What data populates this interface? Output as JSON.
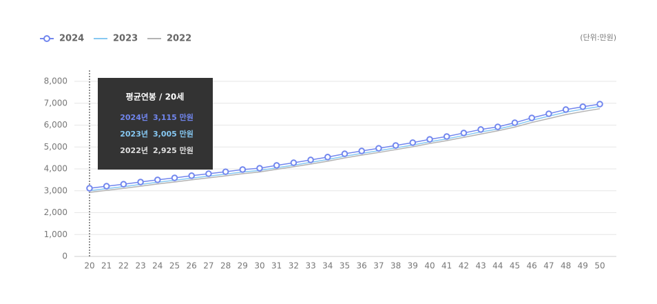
{
  "chart_data": {
    "type": "line",
    "unit_note": "(단위:만원)",
    "x": [
      20,
      21,
      22,
      23,
      24,
      25,
      26,
      27,
      28,
      29,
      30,
      31,
      32,
      33,
      34,
      35,
      36,
      37,
      38,
      39,
      40,
      41,
      42,
      43,
      44,
      45,
      46,
      47,
      48,
      49,
      50
    ],
    "xlim": [
      20,
      50
    ],
    "ylim": [
      0,
      8000
    ],
    "yticks": [
      0,
      {
        "value": 1000,
        "label": "1,000"
      },
      {
        "value": 2000,
        "label": "2,000"
      },
      {
        "value": 3000,
        "label": "3,000"
      },
      {
        "value": 4000,
        "label": "4,000"
      },
      {
        "value": 5000,
        "label": "5,000"
      },
      {
        "value": 6000,
        "label": "6,000"
      },
      {
        "value": 7000,
        "label": "7,000"
      },
      {
        "value": 8000,
        "label": "8,000"
      }
    ],
    "grid": true,
    "series": [
      {
        "name": "2024",
        "color": "#7186ee",
        "markers": true,
        "values": [
          3115,
          3210,
          3300,
          3400,
          3500,
          3590,
          3690,
          3780,
          3870,
          3970,
          4030,
          4160,
          4280,
          4410,
          4540,
          4690,
          4820,
          4940,
          5070,
          5200,
          5350,
          5480,
          5640,
          5800,
          5920,
          6110,
          6330,
          6520,
          6710,
          6840,
          6960
        ]
      },
      {
        "name": "2023",
        "color": "#86c8f2",
        "markers": false,
        "values": [
          3005,
          3100,
          3190,
          3290,
          3390,
          3480,
          3580,
          3670,
          3760,
          3860,
          3930,
          4050,
          4170,
          4300,
          4430,
          4580,
          4710,
          4830,
          4960,
          5090,
          5240,
          5370,
          5530,
          5690,
          5820,
          6000,
          6220,
          6410,
          6590,
          6730,
          6850
        ]
      },
      {
        "name": "2022",
        "color": "#b3b3b3",
        "markers": false,
        "values": [
          2925,
          3020,
          3110,
          3210,
          3310,
          3400,
          3500,
          3590,
          3680,
          3780,
          3860,
          3980,
          4100,
          4220,
          4350,
          4500,
          4630,
          4750,
          4880,
          5010,
          5160,
          5290,
          5440,
          5590,
          5740,
          5910,
          6120,
          6300,
          6480,
          6620,
          6750
        ]
      }
    ],
    "tooltip": {
      "title": "평균연봉 / 20세",
      "rows": [
        {
          "label": "2024년",
          "value": "3,115 만원"
        },
        {
          "label": "2023년",
          "value": "3,005 만원"
        },
        {
          "label": "2022년",
          "value": "2,925 만원"
        }
      ]
    }
  }
}
